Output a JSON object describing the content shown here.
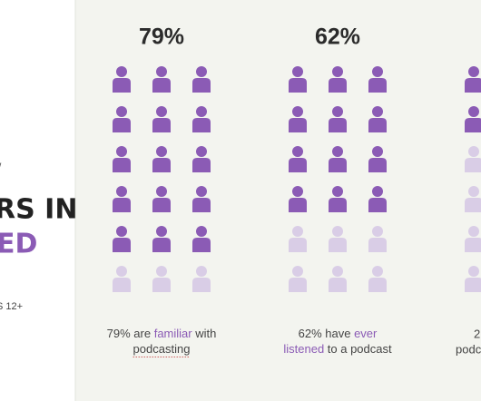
{
  "left": {
    "mark": "/",
    "heading_1": "RS IN",
    "heading_2": "ED",
    "note": "S 12+"
  },
  "columns": [
    {
      "percent": {
        "value": 79,
        "label": "79%"
      },
      "caption": [
        [
          "79% are ",
          "familiar",
          " with"
        ],
        [
          "podcasting"
        ]
      ]
    },
    {
      "percent": {
        "value": 62,
        "label": "62%"
      },
      "caption": [
        [
          "62% have ",
          "ever"
        ],
        [
          "listened",
          " to a podcast"
        ]
      ]
    }
  ],
  "partial": {
    "caption": [
      "2",
      "podc"
    ]
  }
}
